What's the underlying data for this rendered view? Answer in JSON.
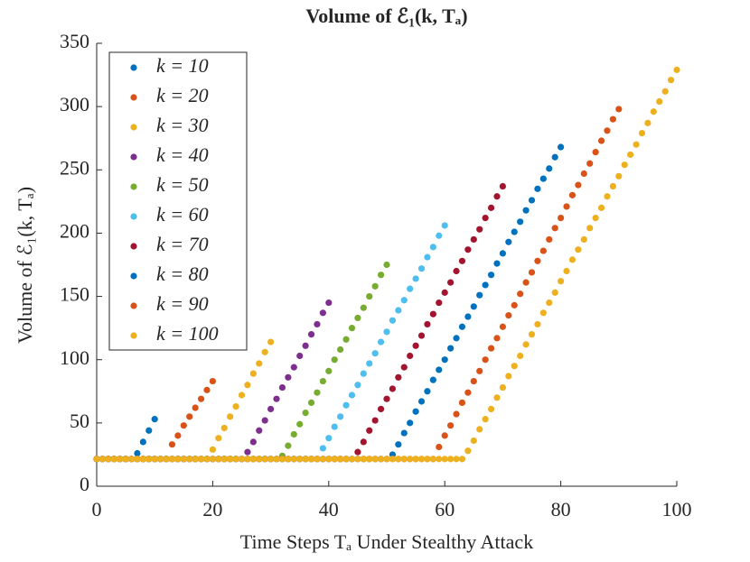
{
  "chart_data": {
    "type": "scatter",
    "title": "Volume of ℰ₁(k, Tₐ)",
    "x_label": "Time Steps Tₐ Under Stealthy Attack",
    "y_label": "Volume of ℰ₁(k, Tₐ)",
    "xlim": [
      0,
      100
    ],
    "xticks": [
      0,
      20,
      40,
      60,
      80,
      100
    ],
    "ylim": [
      0,
      350
    ],
    "yticks": [
      0,
      50,
      100,
      150,
      200,
      250,
      300,
      350
    ],
    "legend": "upper-left",
    "series": [
      {
        "name": "k = 10",
        "color": "#0072BD",
        "x": [
          0,
          1,
          2,
          3,
          4,
          5,
          6,
          7,
          8,
          9,
          10
        ],
        "values": [
          21.5,
          21.5,
          21.5,
          21.5,
          21.5,
          21.5,
          21.5,
          26,
          35,
          44,
          53
        ]
      },
      {
        "name": "k = 20",
        "color": "#D95319",
        "x": [
          0,
          1,
          2,
          3,
          4,
          5,
          6,
          7,
          8,
          9,
          10,
          11,
          12,
          13,
          14,
          15,
          16,
          17,
          18,
          19,
          20
        ],
        "values": [
          21.5,
          21.5,
          21.5,
          21.5,
          21.5,
          21.5,
          21.5,
          21.5,
          21.5,
          21.5,
          21.5,
          21.5,
          21.5,
          33,
          40,
          48,
          55,
          62,
          69,
          76,
          83
        ]
      },
      {
        "name": "k = 30",
        "color": "#EDB120",
        "x": [
          0,
          1,
          2,
          3,
          4,
          5,
          6,
          7,
          8,
          9,
          10,
          11,
          12,
          13,
          14,
          15,
          16,
          17,
          18,
          19,
          20,
          21,
          22,
          23,
          24,
          25,
          26,
          27,
          28,
          29,
          30
        ],
        "values": [
          21.5,
          21.5,
          21.5,
          21.5,
          21.5,
          21.5,
          21.5,
          21.5,
          21.5,
          21.5,
          21.5,
          21.5,
          21.5,
          21.5,
          21.5,
          21.5,
          21.5,
          21.5,
          21.5,
          21.5,
          29,
          38,
          46,
          55,
          63,
          72,
          80,
          89,
          97,
          106,
          114
        ]
      },
      {
        "name": "k = 40",
        "color": "#7E2F8E",
        "x": [
          0,
          1,
          2,
          3,
          4,
          5,
          6,
          7,
          8,
          9,
          10,
          11,
          12,
          13,
          14,
          15,
          16,
          17,
          18,
          19,
          20,
          21,
          22,
          23,
          24,
          25,
          26,
          27,
          28,
          29,
          30,
          31,
          32,
          33,
          34,
          35,
          36,
          37,
          38,
          39,
          40
        ],
        "values": [
          21.5,
          21.5,
          21.5,
          21.5,
          21.5,
          21.5,
          21.5,
          21.5,
          21.5,
          21.5,
          21.5,
          21.5,
          21.5,
          21.5,
          21.5,
          21.5,
          21.5,
          21.5,
          21.5,
          21.5,
          21.5,
          21.5,
          21.5,
          21.5,
          21.5,
          21.5,
          27,
          35,
          44,
          52,
          61,
          69,
          78,
          86,
          94,
          103,
          111,
          120,
          128,
          137,
          145
        ]
      },
      {
        "name": "k = 50",
        "color": "#77AC30",
        "x": [
          0,
          1,
          2,
          3,
          4,
          5,
          6,
          7,
          8,
          9,
          10,
          11,
          12,
          13,
          14,
          15,
          16,
          17,
          18,
          19,
          20,
          21,
          22,
          23,
          24,
          25,
          26,
          27,
          28,
          29,
          30,
          31,
          32,
          33,
          34,
          35,
          36,
          37,
          38,
          39,
          40,
          41,
          42,
          43,
          44,
          45,
          46,
          47,
          48,
          49,
          50
        ],
        "values": [
          21.5,
          21.5,
          21.5,
          21.5,
          21.5,
          21.5,
          21.5,
          21.5,
          21.5,
          21.5,
          21.5,
          21.5,
          21.5,
          21.5,
          21.5,
          21.5,
          21.5,
          21.5,
          21.5,
          21.5,
          21.5,
          21.5,
          21.5,
          21.5,
          21.5,
          21.5,
          21.5,
          21.5,
          21.5,
          21.5,
          21.5,
          21.5,
          24,
          32,
          41,
          49,
          58,
          66,
          74,
          83,
          91,
          100,
          108,
          116,
          125,
          133,
          141,
          150,
          158,
          167,
          175
        ]
      },
      {
        "name": "k = 60",
        "color": "#4DBEEE",
        "x": [
          0,
          1,
          2,
          3,
          4,
          5,
          6,
          7,
          8,
          9,
          10,
          11,
          12,
          13,
          14,
          15,
          16,
          17,
          18,
          19,
          20,
          21,
          22,
          23,
          24,
          25,
          26,
          27,
          28,
          29,
          30,
          31,
          32,
          33,
          34,
          35,
          36,
          37,
          38,
          39,
          40,
          41,
          42,
          43,
          44,
          45,
          46,
          47,
          48,
          49,
          50,
          51,
          52,
          53,
          54,
          55,
          56,
          57,
          58,
          59,
          60
        ],
        "values": [
          21.5,
          21.5,
          21.5,
          21.5,
          21.5,
          21.5,
          21.5,
          21.5,
          21.5,
          21.5,
          21.5,
          21.5,
          21.5,
          21.5,
          21.5,
          21.5,
          21.5,
          21.5,
          21.5,
          21.5,
          21.5,
          21.5,
          21.5,
          21.5,
          21.5,
          21.5,
          21.5,
          21.5,
          21.5,
          21.5,
          21.5,
          21.5,
          21.5,
          21.5,
          21.5,
          21.5,
          21.5,
          21.5,
          21.5,
          30,
          38,
          47,
          55,
          64,
          72,
          80,
          89,
          97,
          105,
          114,
          122,
          131,
          139,
          147,
          156,
          164,
          172,
          181,
          189,
          198,
          206
        ]
      },
      {
        "name": "k = 70",
        "color": "#A2142F",
        "x": [
          0,
          1,
          2,
          3,
          4,
          5,
          6,
          7,
          8,
          9,
          10,
          11,
          12,
          13,
          14,
          15,
          16,
          17,
          18,
          19,
          20,
          21,
          22,
          23,
          24,
          25,
          26,
          27,
          28,
          29,
          30,
          31,
          32,
          33,
          34,
          35,
          36,
          37,
          38,
          39,
          40,
          41,
          42,
          43,
          44,
          45,
          46,
          47,
          48,
          49,
          50,
          51,
          52,
          53,
          54,
          55,
          56,
          57,
          58,
          59,
          60,
          61,
          62,
          63,
          64,
          65,
          66,
          67,
          68,
          69,
          70
        ],
        "values": [
          21.5,
          21.5,
          21.5,
          21.5,
          21.5,
          21.5,
          21.5,
          21.5,
          21.5,
          21.5,
          21.5,
          21.5,
          21.5,
          21.5,
          21.5,
          21.5,
          21.5,
          21.5,
          21.5,
          21.5,
          21.5,
          21.5,
          21.5,
          21.5,
          21.5,
          21.5,
          21.5,
          21.5,
          21.5,
          21.5,
          21.5,
          21.5,
          21.5,
          21.5,
          21.5,
          21.5,
          21.5,
          21.5,
          21.5,
          21.5,
          21.5,
          21.5,
          21.5,
          21.5,
          21.5,
          27,
          35,
          44,
          52,
          61,
          69,
          77,
          86,
          94,
          103,
          111,
          119,
          128,
          136,
          145,
          153,
          161,
          170,
          178,
          187,
          195,
          203,
          212,
          220,
          229,
          237
        ]
      },
      {
        "name": "k = 80",
        "color": "#0072BD",
        "x": [
          0,
          1,
          2,
          3,
          4,
          5,
          6,
          7,
          8,
          9,
          10,
          11,
          12,
          13,
          14,
          15,
          16,
          17,
          18,
          19,
          20,
          21,
          22,
          23,
          24,
          25,
          26,
          27,
          28,
          29,
          30,
          31,
          32,
          33,
          34,
          35,
          36,
          37,
          38,
          39,
          40,
          41,
          42,
          43,
          44,
          45,
          46,
          47,
          48,
          49,
          50,
          51,
          52,
          53,
          54,
          55,
          56,
          57,
          58,
          59,
          60,
          61,
          62,
          63,
          64,
          65,
          66,
          67,
          68,
          69,
          70,
          71,
          72,
          73,
          74,
          75,
          76,
          77,
          78,
          79,
          80
        ],
        "values": [
          21.5,
          21.5,
          21.5,
          21.5,
          21.5,
          21.5,
          21.5,
          21.5,
          21.5,
          21.5,
          21.5,
          21.5,
          21.5,
          21.5,
          21.5,
          21.5,
          21.5,
          21.5,
          21.5,
          21.5,
          21.5,
          21.5,
          21.5,
          21.5,
          21.5,
          21.5,
          21.5,
          21.5,
          21.5,
          21.5,
          21.5,
          21.5,
          21.5,
          21.5,
          21.5,
          21.5,
          21.5,
          21.5,
          21.5,
          21.5,
          21.5,
          21.5,
          21.5,
          21.5,
          21.5,
          21.5,
          21.5,
          21.5,
          21.5,
          21.5,
          21.5,
          25,
          33,
          42,
          50,
          59,
          67,
          75,
          84,
          92,
          100,
          109,
          117,
          126,
          134,
          142,
          151,
          159,
          167,
          176,
          184,
          193,
          201,
          209,
          218,
          226,
          235,
          243,
          251,
          260,
          268
        ]
      },
      {
        "name": "k = 90",
        "color": "#D95319",
        "x": [
          0,
          1,
          2,
          3,
          4,
          5,
          6,
          7,
          8,
          9,
          10,
          11,
          12,
          13,
          14,
          15,
          16,
          17,
          18,
          19,
          20,
          21,
          22,
          23,
          24,
          25,
          26,
          27,
          28,
          29,
          30,
          31,
          32,
          33,
          34,
          35,
          36,
          37,
          38,
          39,
          40,
          41,
          42,
          43,
          44,
          45,
          46,
          47,
          48,
          49,
          50,
          51,
          52,
          53,
          54,
          55,
          56,
          57,
          58,
          59,
          60,
          61,
          62,
          63,
          64,
          65,
          66,
          67,
          68,
          69,
          70,
          71,
          72,
          73,
          74,
          75,
          76,
          77,
          78,
          79,
          80,
          81,
          82,
          83,
          84,
          85,
          86,
          87,
          88,
          89,
          90
        ],
        "values": [
          21.5,
          21.5,
          21.5,
          21.5,
          21.5,
          21.5,
          21.5,
          21.5,
          21.5,
          21.5,
          21.5,
          21.5,
          21.5,
          21.5,
          21.5,
          21.5,
          21.5,
          21.5,
          21.5,
          21.5,
          21.5,
          21.5,
          21.5,
          21.5,
          21.5,
          21.5,
          21.5,
          21.5,
          21.5,
          21.5,
          21.5,
          21.5,
          21.5,
          21.5,
          21.5,
          21.5,
          21.5,
          21.5,
          21.5,
          21.5,
          21.5,
          21.5,
          21.5,
          21.5,
          21.5,
          21.5,
          21.5,
          21.5,
          21.5,
          21.5,
          21.5,
          21.5,
          21.5,
          21.5,
          21.5,
          21.5,
          21.5,
          21.5,
          21.5,
          31,
          40,
          48,
          57,
          66,
          74,
          83,
          91,
          100,
          109,
          117,
          126,
          135,
          143,
          152,
          161,
          169,
          178,
          186,
          195,
          204,
          212,
          221,
          230,
          238,
          247,
          255,
          264,
          273,
          281,
          290,
          298
        ]
      },
      {
        "name": "k = 100",
        "color": "#EDB120",
        "x": [
          0,
          1,
          2,
          3,
          4,
          5,
          6,
          7,
          8,
          9,
          10,
          11,
          12,
          13,
          14,
          15,
          16,
          17,
          18,
          19,
          20,
          21,
          22,
          23,
          24,
          25,
          26,
          27,
          28,
          29,
          30,
          31,
          32,
          33,
          34,
          35,
          36,
          37,
          38,
          39,
          40,
          41,
          42,
          43,
          44,
          45,
          46,
          47,
          48,
          49,
          50,
          51,
          52,
          53,
          54,
          55,
          56,
          57,
          58,
          59,
          60,
          61,
          62,
          63,
          64,
          65,
          66,
          67,
          68,
          69,
          70,
          71,
          72,
          73,
          74,
          75,
          76,
          77,
          78,
          79,
          80,
          81,
          82,
          83,
          84,
          85,
          86,
          87,
          88,
          89,
          90,
          91,
          92,
          93,
          94,
          95,
          96,
          97,
          98,
          99,
          100
        ],
        "values": [
          21.5,
          21.5,
          21.5,
          21.5,
          21.5,
          21.5,
          21.5,
          21.5,
          21.5,
          21.5,
          21.5,
          21.5,
          21.5,
          21.5,
          21.5,
          21.5,
          21.5,
          21.5,
          21.5,
          21.5,
          21.5,
          21.5,
          21.5,
          21.5,
          21.5,
          21.5,
          21.5,
          21.5,
          21.5,
          21.5,
          21.5,
          21.5,
          21.5,
          21.5,
          21.5,
          21.5,
          21.5,
          21.5,
          21.5,
          21.5,
          21.5,
          21.5,
          21.5,
          21.5,
          21.5,
          21.5,
          21.5,
          21.5,
          21.5,
          21.5,
          21.5,
          21.5,
          21.5,
          21.5,
          21.5,
          21.5,
          21.5,
          21.5,
          21.5,
          21.5,
          21.5,
          21.5,
          21.5,
          21.5,
          28,
          36,
          45,
          53,
          61,
          70,
          78,
          87,
          95,
          103,
          112,
          120,
          128,
          137,
          145,
          153,
          162,
          170,
          179,
          187,
          195,
          204,
          212,
          220,
          229,
          237,
          245,
          254,
          262,
          270,
          279,
          287,
          296,
          304,
          312,
          321,
          329
        ]
      }
    ]
  }
}
